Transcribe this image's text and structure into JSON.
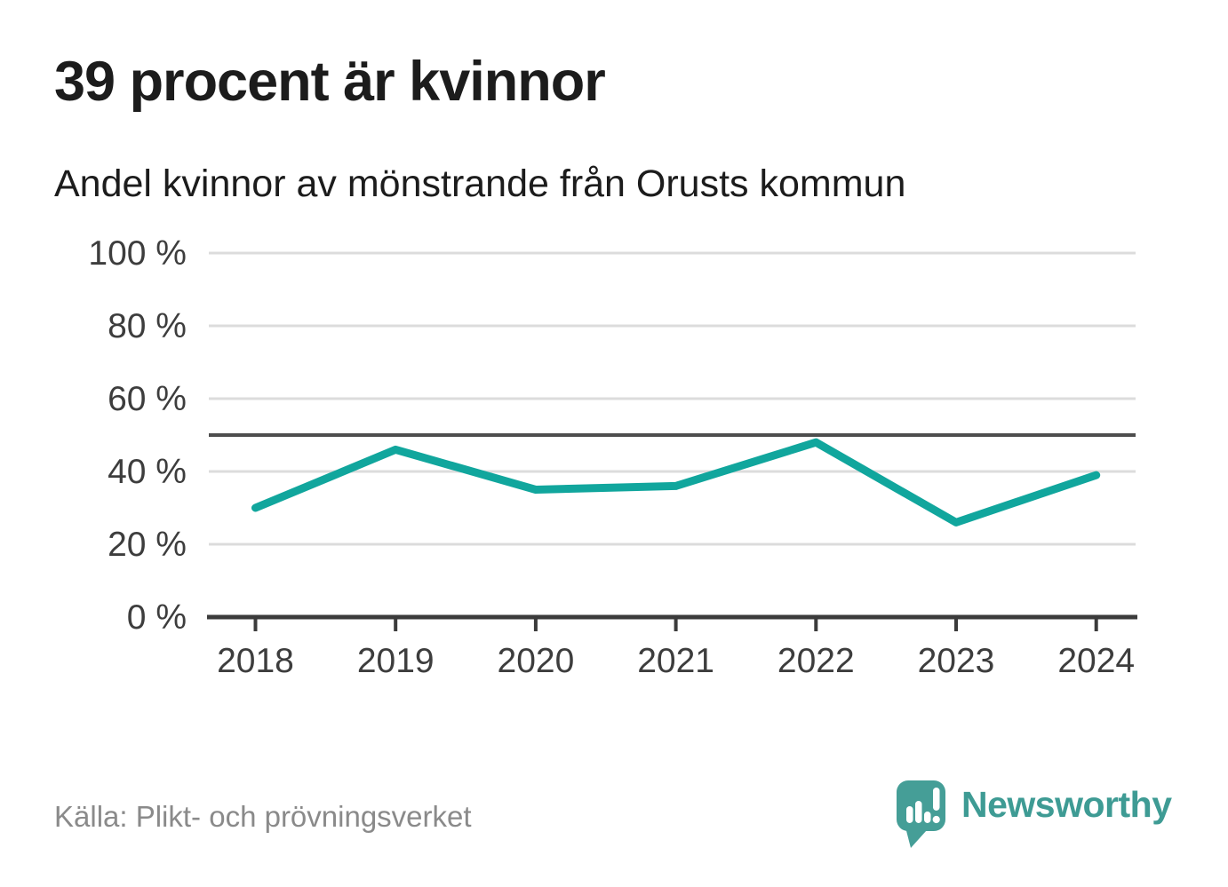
{
  "chart_data": {
    "type": "line",
    "title": "39 procent är kvinnor",
    "subtitle": "Andel kvinnor av mönstrande från Orusts kommun",
    "categories": [
      "2018",
      "2019",
      "2020",
      "2021",
      "2022",
      "2023",
      "2024"
    ],
    "series": [
      {
        "name": "Andel kvinnor av mönstrande",
        "values": [
          30,
          46,
          35,
          36,
          48,
          26,
          39
        ]
      }
    ],
    "unit": "%",
    "ylim": [
      0,
      100
    ],
    "yticks": [
      0,
      20,
      40,
      60,
      80,
      100
    ],
    "ytick_suffix": " %",
    "reference_line": 50,
    "grid": true,
    "legend": "none",
    "colors": {
      "line": "#11a69d",
      "reference_line": "#4d4d4d",
      "axis": "#3b3b3b",
      "gridline": "#dcdcdc",
      "tick_label": "#3d3d3d"
    }
  },
  "footer": {
    "source": "Källa: Plikt- och prövningsverket",
    "brand": "Newsworthy",
    "brand_color": "#3e9b94",
    "logo_color": "#459e97"
  }
}
